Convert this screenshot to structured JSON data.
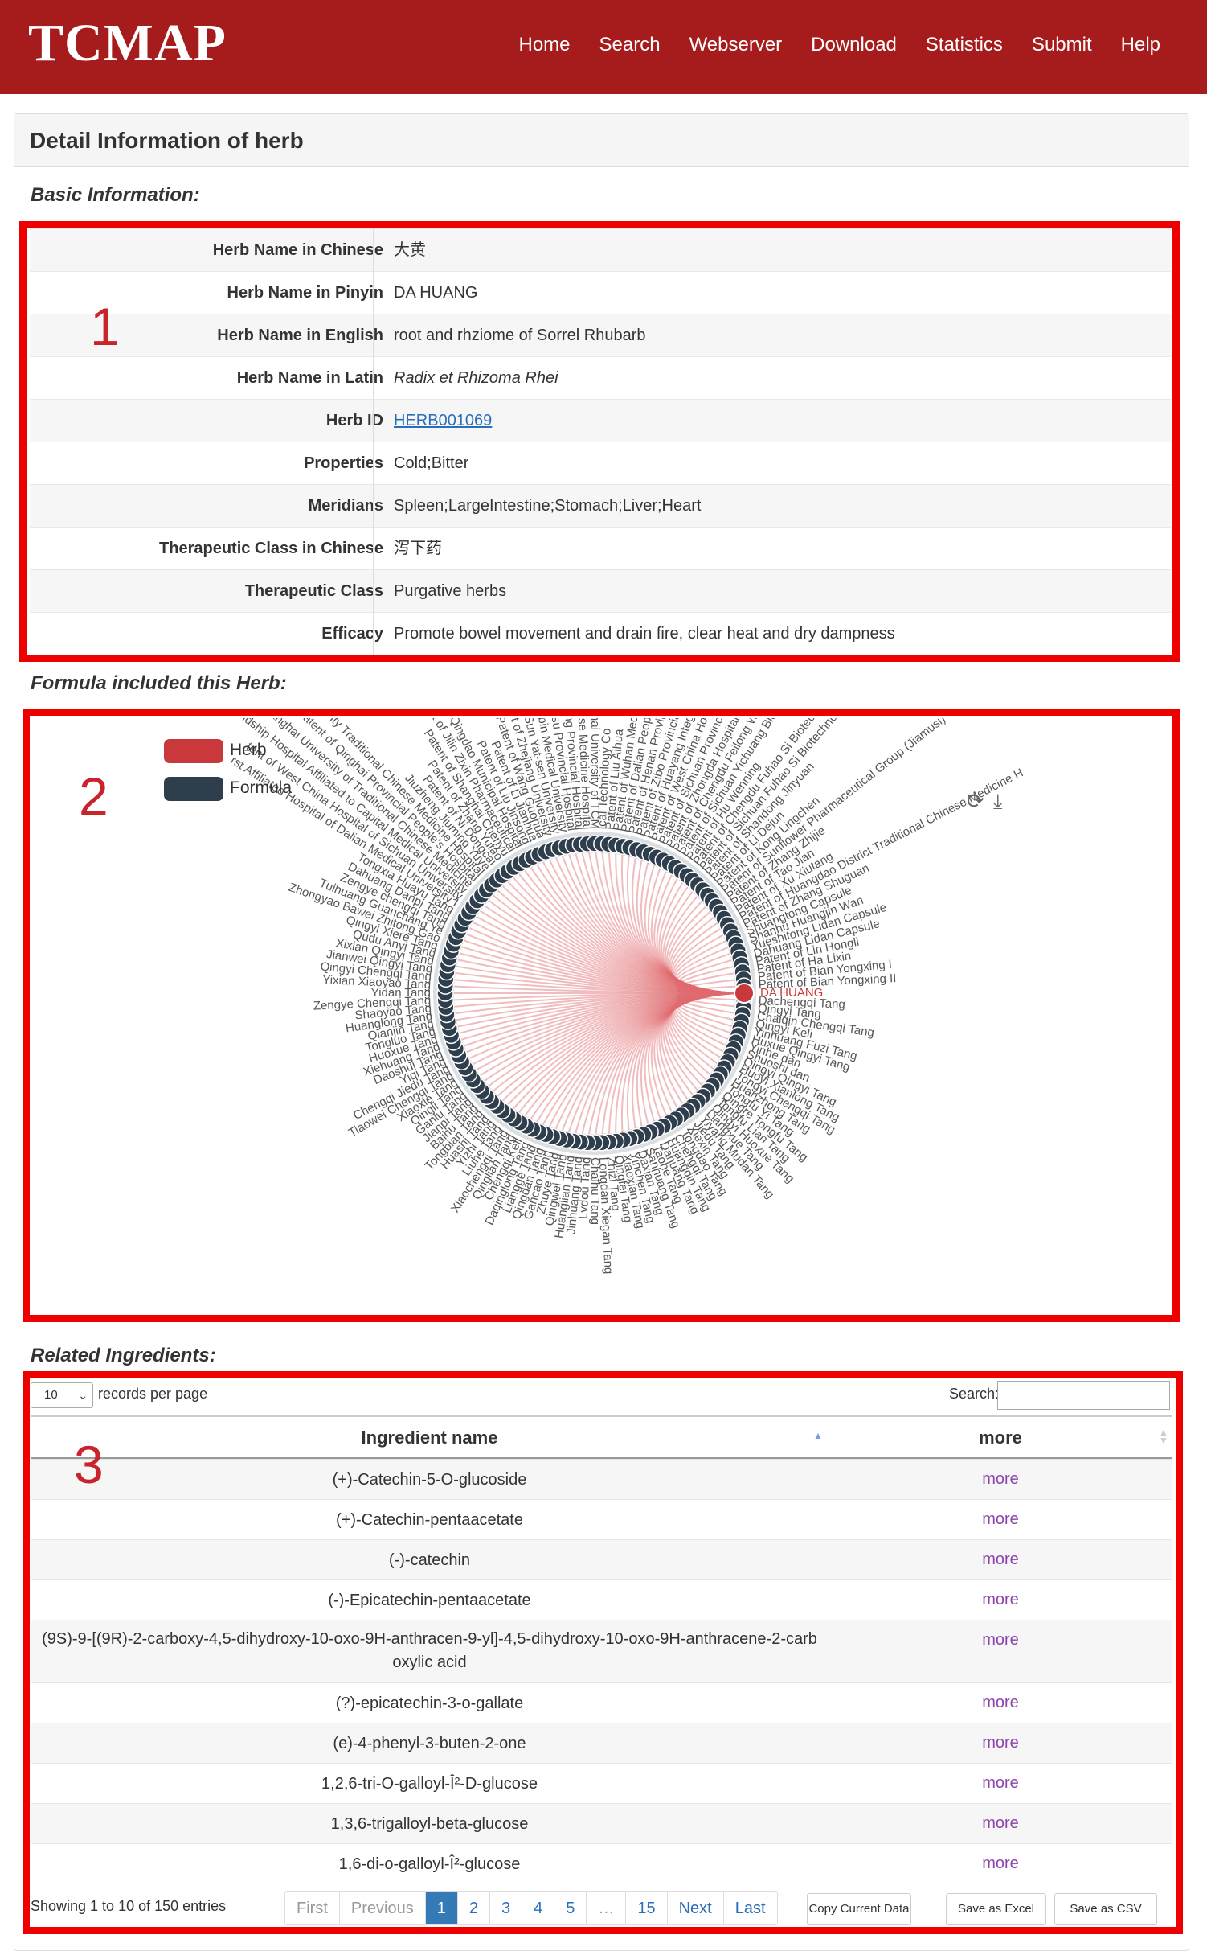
{
  "site": {
    "logo": "TCMAP",
    "nav": [
      "Home",
      "Search",
      "Webserver",
      "Download",
      "Statistics",
      "Submit",
      "Help"
    ]
  },
  "panel_title": "Detail Information of herb",
  "sections": {
    "basic": "Basic Information:",
    "formula": "Formula included this Herb:",
    "ingredients": "Related Ingredients:"
  },
  "markers": [
    "1",
    "2",
    "3"
  ],
  "basic_info": [
    {
      "label": "Herb Name in Chinese",
      "value": "大黄"
    },
    {
      "label": "Herb Name in Pinyin",
      "value": "DA HUANG"
    },
    {
      "label": "Herb Name in English",
      "value": "root and rhziome of Sorrel Rhubarb"
    },
    {
      "label": "Herb Name in Latin",
      "value": "Radix et Rhizoma Rhei"
    },
    {
      "label": "Herb ID",
      "value": "HERB001069"
    },
    {
      "label": "Properties",
      "value": "Cold;Bitter"
    },
    {
      "label": "Meridians",
      "value": "Spleen;LargeIntestine;Stomach;Liver;Heart"
    },
    {
      "label": "Therapeutic Class in Chinese",
      "value": "泻下药"
    },
    {
      "label": "Therapeutic Class",
      "value": "Purgative herbs"
    },
    {
      "label": "Efficacy",
      "value": "Promote bowel movement and drain fire, clear heat and dry dampness"
    }
  ],
  "network": {
    "legend": [
      {
        "name": "Herb",
        "color": "#c9383a"
      },
      {
        "name": "Formula",
        "color": "#2f3e4c"
      }
    ],
    "center_label": "DA HUANG",
    "tools": [
      "refresh-icon",
      "download-icon"
    ],
    "formula_labels": [
      "Dachengqi Tang",
      "Qingyi Tang",
      "Chaiqin Chengqi Tang",
      "Qingyi Keli",
      "Yinhuang Fuzi Tang",
      "Huxue Qingyi Tang",
      "Yinhe dan",
      "Shuoshi dan",
      "Qingyi Qingyi Tang",
      "Huoyi Xianlong Tang",
      "Tongyi Chengqi Tang",
      "Huanzhong Tang",
      "Tongfu Yi Tang",
      "Qingre Tongfu Tang",
      "Tongfu Lian Tang",
      "Qingyi Huoxue Tang",
      "Liangxue Tang",
      "Yiyang Mudan Tang",
      "Jiedu Tang",
      "Xiexin Tang",
      "Tongdao Tang",
      "Chengqi Tang",
      "Huangqin Tang",
      "Dahuang Tang",
      "Taohe Tang",
      "Sanhuang Tang",
      "Daxian Tang",
      "Yinchen Tang",
      "Xiaoxian Tang",
      "Qingfei Tang",
      "Zhizi Tang",
      "Longdan Xiegan Tang",
      "Chaihu Tang",
      "Lvdou Tang",
      "Jinhuang Tang",
      "Huanglian Tang",
      "Qingwei Tang",
      "Zhuye Tang",
      "Gancao Tang",
      "Qingdan Tang",
      "Liangge Tang",
      "Daqinglong Tang",
      "Chengqi Keli",
      "Qinglian Tang",
      "Xiaochengqi Tang",
      "Liuhe Tang",
      "Yizhi Tang",
      "Huashi Tang",
      "Tongbian Tang",
      "Baihu Tang",
      "Jianpi Tang",
      "Ganlu Tang",
      "Qingli Tang",
      "Xiaoxie Tang",
      "Tiaowei Chengqi Tang",
      "Chengqi Jiedu Tang",
      "Yiqi Tang",
      "Daoshui Tang",
      "Xiehuang Tang",
      "Huoxue Tang",
      "Tongluo Tang",
      "Qianjin Tang",
      "Huanglong Tang",
      "Shaoyao Tang",
      "Zengye Chengqi Tang",
      "Yidan Tang",
      "Yixian Xiaoyao Tang",
      "Qingyi Chengqi Tang",
      "Jianwei Qingyi Tang",
      "Xixian Qingyi Tang",
      "Qudu Anyi Tang",
      "Qingyi Xiere Tang",
      "Zhongyao Bawei Zhitong Gao",
      "Tuihuang Guanchang Ye",
      "Zengye chengqi Tang",
      "Dahuang Danpi Tang",
      "Tongxia Huayu Tang",
      "rst Affiliated Hospital of Dalian Medical University I",
      "tent of West China Hospital of Sichuan University",
      "ndship Hospital Affiliated to Capital Medical University",
      "o Shanghai University of Traditional Chinese Medicine",
      "Patent of Qinghai Provincial People's Hospital",
      "f Gong'an County Traditional Chinese Medicine Hospital",
      "Jiuzheng Jiuming Yuye",
      "Patent of Ni Dongcai",
      "Patent of Zhang Yutao",
      "Patent of Shanghai Chenyu",
      "Patent of Jilin Zixin Pharmaceutical",
      "Patent of Qingdao Municipal Hospital",
      "Patent of Liu Jinsong",
      "Patent of Li Jianhua",
      "Patent of Wang Guohua",
      "Patent of Zhejiang University",
      "Patent of Sun Yat-sen University",
      "Patent of Harbin Medical University",
      "Patent of Jiangsu Provincial Hospital",
      "Patent of Zhejiang Provincial Hospital",
      "Chinese Medicine Hospital",
      "hai University of TCM",
      "ical Technology Co",
      "Patent of Liu Aihua",
      "Patent of Wuhan Medical",
      "Patent of Dalian People",
      "Patent of Henan Provincial",
      "Patent of Zibo Provincial",
      "Patent of Huayang Integrated",
      "Patent of West China Hospital",
      "Patent of Sichuan Provincial Env",
      "Patent of Zhongda Hospital",
      "Patent of Chengdu Feilong Water",
      "Patent of Sichuan Yichuang Biotech",
      "Patent of Hu Wenning",
      "Patent of Chengdu Fuhao Si Biotechnology",
      "Patent of Sichuan Fuhao Si Biotechnology",
      "Patent of Shandong Jinyuan",
      "Patent of Li Dejun",
      "Patent of Kong Lingchen",
      "Patent of Sunflower Pharmaceutical Group (Jiamusi) Co., Ltd",
      "Patent of Zhang Zhijie",
      "Patent of Tao Jian",
      "Patent of Xu Xiutang",
      "Patent of Huangdao District Traditional Chinese Medicine H",
      "Patent of Zhang Shuguan",
      "Shuangtong Capsule",
      "Shanhu Huangjin Wan",
      "Yueshitong Lidan Capsule",
      "Dahuang Lidan Capsule",
      "Patent of Lin Hongli",
      "Patent of Ha Lixin",
      "Patent of Bian Yongxing I",
      "Patent of Bian Yongxing II"
    ]
  },
  "ingredients": {
    "length_value": "10",
    "length_text": "records per page",
    "search_label": "Search:",
    "search_value": "",
    "columns": [
      "Ingredient name",
      "more"
    ],
    "rows": [
      {
        "name": "(+)-Catechin-5-O-glucoside",
        "more": "more"
      },
      {
        "name": "(+)-Catechin-pentaacetate",
        "more": "more"
      },
      {
        "name": "(-)-catechin",
        "more": "more"
      },
      {
        "name": "(-)-Epicatechin-pentaacetate",
        "more": "more"
      },
      {
        "name": "(9S)-9-[(9R)-2-carboxy-4,5-dihydroxy-10-oxo-9H-anthracen-9-yl]-4,5-dihydroxy-10-oxo-9H-anthracene-2-carboxylic acid",
        "more": "more"
      },
      {
        "name": "(?)-epicatechin-3-o-gallate",
        "more": "more"
      },
      {
        "name": "(e)-4-phenyl-3-buten-2-one",
        "more": "more"
      },
      {
        "name": "1,2,6-tri-O-galloyl-Î²-D-glucose",
        "more": "more"
      },
      {
        "name": "1,3,6-trigalloyl-beta-glucose",
        "more": "more"
      },
      {
        "name": "1,6-di-o-galloyl-Î²-glucose",
        "more": "more"
      }
    ],
    "info": "Showing 1 to 10 of 150 entries",
    "pagination": [
      "First",
      "Previous",
      "1",
      "2",
      "3",
      "4",
      "5",
      "…",
      "15",
      "Next",
      "Last"
    ],
    "current_page": "1",
    "buttons": [
      "Copy Current Data",
      "Save as Excel",
      "Save as CSV"
    ]
  }
}
